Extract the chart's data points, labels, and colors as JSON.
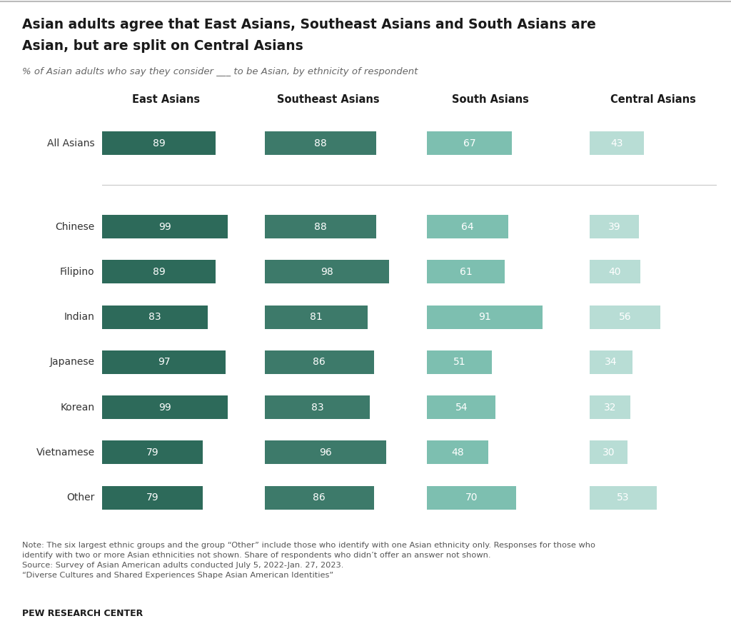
{
  "title_line1": "Asian adults agree that East Asians, Southeast Asians and South Asians are",
  "title_line2": "Asian, but are split on Central Asians",
  "subtitle": "% of Asian adults who say they consider ___ to be Asian, by ethnicity of respondent",
  "col_headers": [
    "East Asians",
    "Southeast Asians",
    "South Asians",
    "Central Asians"
  ],
  "row_labels": [
    "All Asians",
    "Chinese",
    "Filipino",
    "Indian",
    "Japanese",
    "Korean",
    "Vietnamese",
    "Other"
  ],
  "data": [
    [
      89,
      88,
      67,
      43
    ],
    [
      99,
      88,
      64,
      39
    ],
    [
      89,
      98,
      61,
      40
    ],
    [
      83,
      81,
      91,
      56
    ],
    [
      97,
      86,
      51,
      34
    ],
    [
      99,
      83,
      54,
      32
    ],
    [
      79,
      96,
      48,
      30
    ],
    [
      79,
      86,
      70,
      53
    ]
  ],
  "colors": [
    "#2d6a5a",
    "#3d7a6a",
    "#7dbfb0",
    "#b8ddd5"
  ],
  "background_color": "#ffffff",
  "note_text": "Note: The six largest ethnic groups and the group “Other” include those who identify with one Asian ethnicity only. Responses for those who\nidentify with two or more Asian ethnicities not shown. Share of respondents who didn’t offer an answer not shown.\nSource: Survey of Asian American adults conducted July 5, 2022-Jan. 27, 2023.\n“Diverse Cultures and Shared Experiences Shape Asian American Identities”",
  "source_label": "PEW RESEARCH CENTER"
}
